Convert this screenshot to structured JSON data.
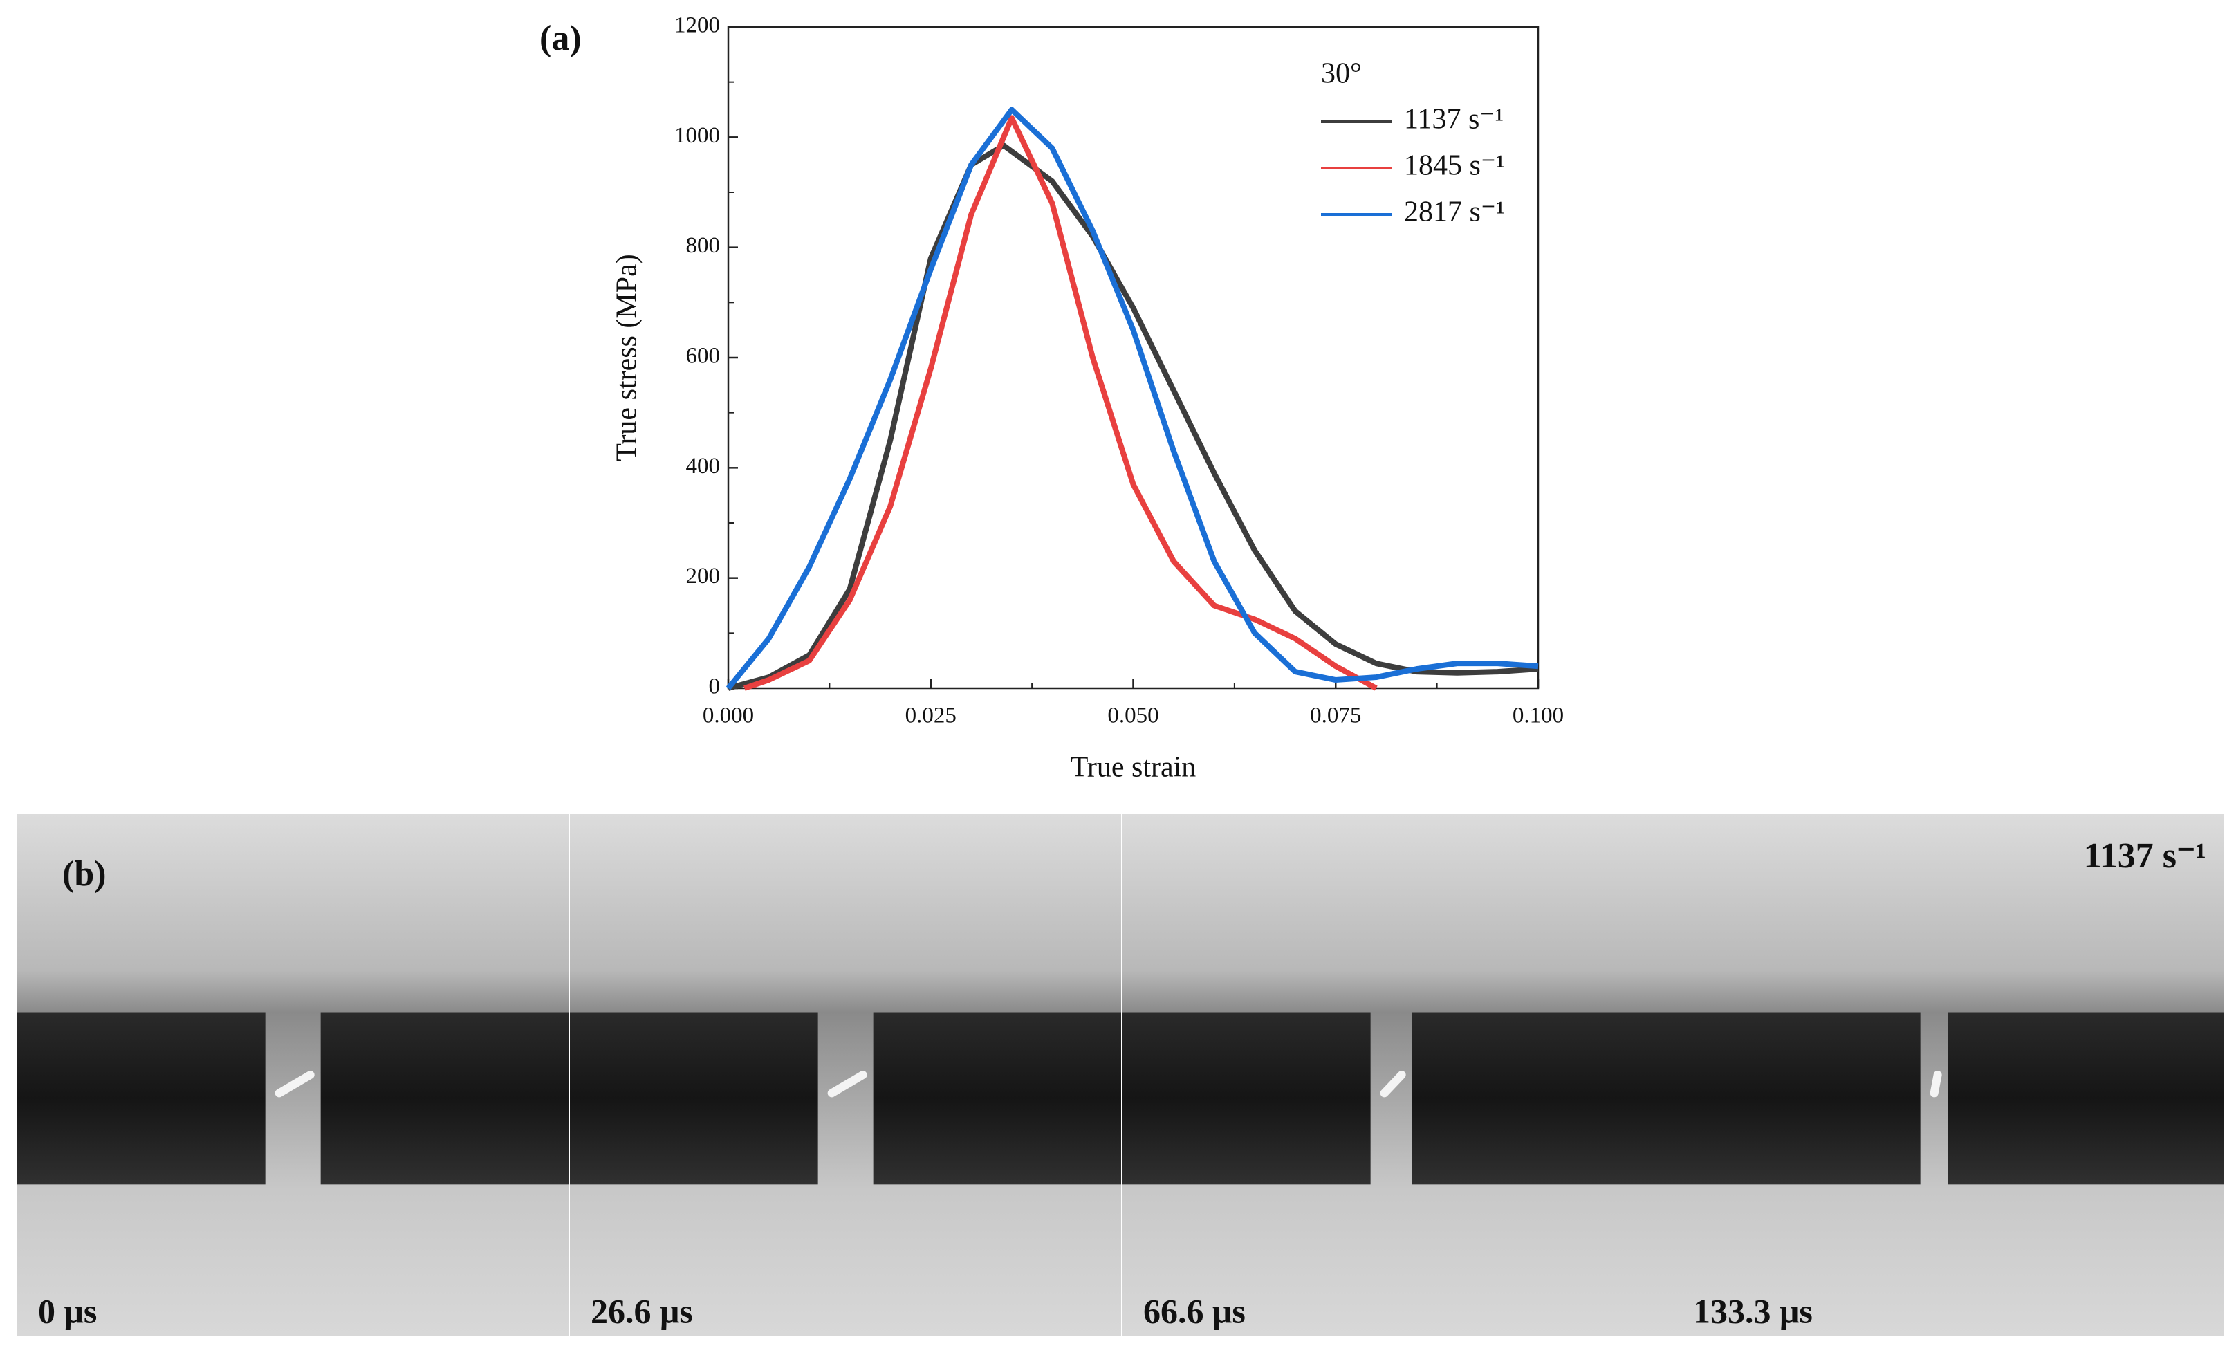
{
  "chart_data": {
    "type": "line",
    "panel_label": "(a)",
    "xlabel": "True strain",
    "ylabel": "True stress (MPa)",
    "legend_title": "30°",
    "legend": "upper right",
    "xlim": [
      0,
      0.1
    ],
    "ylim": [
      0,
      1200
    ],
    "xticks": [
      {
        "value": 0,
        "label": "0.000"
      },
      {
        "value": 0.025,
        "label": "0.025"
      },
      {
        "value": 0.05,
        "label": "0.050"
      },
      {
        "value": 0.075,
        "label": "0.075"
      },
      {
        "value": 0.1,
        "label": "0.100"
      }
    ],
    "yticks": [
      0,
      200,
      400,
      600,
      800,
      1000,
      1200
    ],
    "series": [
      {
        "name": "1137 s⁻¹",
        "color": "#3d3d3d",
        "x": [
          0,
          0.005,
          0.01,
          0.015,
          0.02,
          0.025,
          0.03,
          0.034,
          0.04,
          0.045,
          0.05,
          0.055,
          0.06,
          0.065,
          0.07,
          0.075,
          0.08,
          0.085,
          0.09,
          0.095,
          0.1
        ],
        "values": [
          0,
          20,
          60,
          180,
          450,
          780,
          950,
          985,
          920,
          820,
          690,
          540,
          390,
          250,
          140,
          80,
          45,
          30,
          28,
          30,
          35
        ]
      },
      {
        "name": "1845 s⁻¹",
        "color": "#e8403f",
        "x": [
          0.002,
          0.005,
          0.01,
          0.015,
          0.02,
          0.025,
          0.03,
          0.035,
          0.04,
          0.045,
          0.05,
          0.055,
          0.06,
          0.065,
          0.07,
          0.075,
          0.08
        ],
        "values": [
          0,
          15,
          50,
          160,
          330,
          580,
          860,
          1035,
          880,
          600,
          370,
          230,
          150,
          125,
          90,
          40,
          0
        ]
      },
      {
        "name": "2817 s⁻¹",
        "color": "#1a6fd6",
        "x": [
          0,
          0.005,
          0.01,
          0.015,
          0.02,
          0.025,
          0.03,
          0.035,
          0.04,
          0.045,
          0.05,
          0.055,
          0.06,
          0.065,
          0.07,
          0.075,
          0.08,
          0.085,
          0.09,
          0.095,
          0.1
        ],
        "values": [
          0,
          90,
          220,
          380,
          560,
          760,
          950,
          1050,
          980,
          830,
          650,
          430,
          230,
          100,
          30,
          15,
          20,
          35,
          45,
          45,
          40
        ]
      }
    ]
  },
  "panel_b": {
    "label": "(b)",
    "rate": "1137 s⁻¹",
    "frames": [
      "0 μs",
      "26.6 μs",
      "66.6 μs",
      "133.3 μs"
    ]
  }
}
